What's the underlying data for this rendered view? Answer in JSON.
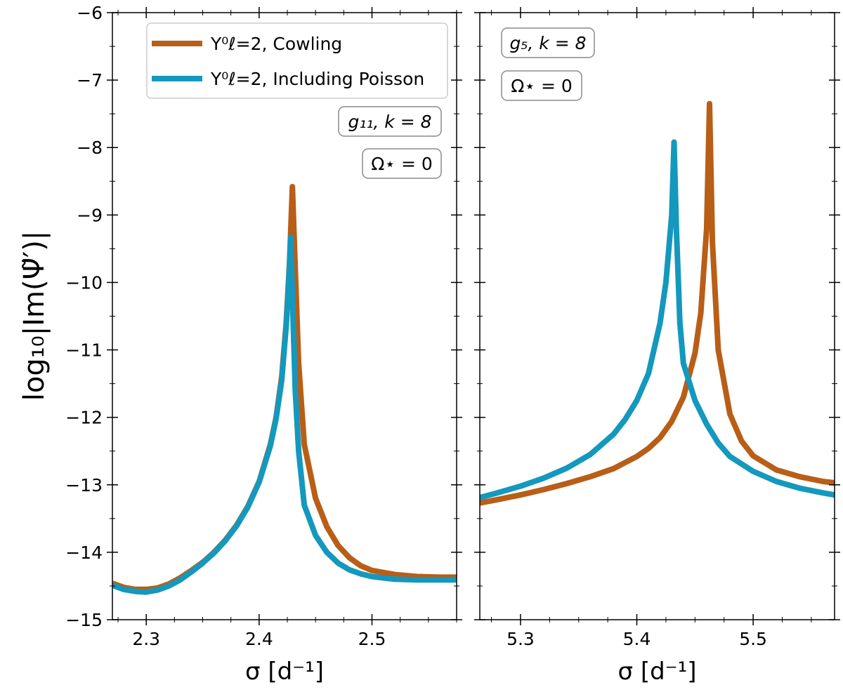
{
  "chart_data": [
    {
      "type": "line",
      "panel": "left",
      "xlabel": "σ [d⁻¹]",
      "ylabel": "log₁₀|Im(Ψ̃′)|",
      "xlim": [
        2.27,
        2.575
      ],
      "ylim": [
        -15,
        -6
      ],
      "xticks": [
        2.3,
        2.4,
        2.5
      ],
      "xtick_labels": [
        "2.3",
        "2.4",
        "2.5"
      ],
      "yticks": [
        -15,
        -14,
        -13,
        -12,
        -11,
        -10,
        -9,
        -8,
        -7,
        -6
      ],
      "ytick_labels": [
        "−15",
        "−14",
        "−13",
        "−12",
        "−11",
        "−10",
        "−9",
        "−8",
        "−7",
        "−6"
      ],
      "annotations": [
        "g₁₁, k = 8",
        "Ω⋆ = 0"
      ],
      "legend": {
        "placement": "top-center",
        "entries": [
          "Y⁰ℓ=2, Cowling",
          "Y⁰ℓ=2, Including Poisson"
        ]
      },
      "series": [
        {
          "name": "Y⁰ℓ=2, Cowling",
          "color": "#b95e17",
          "x": [
            2.27,
            2.28,
            2.29,
            2.3,
            2.31,
            2.32,
            2.33,
            2.34,
            2.35,
            2.36,
            2.37,
            2.38,
            2.39,
            2.4,
            2.41,
            2.415,
            2.42,
            2.424,
            2.427,
            2.4295,
            2.432,
            2.435,
            2.44,
            2.45,
            2.46,
            2.47,
            2.48,
            2.49,
            2.5,
            2.52,
            2.54,
            2.56,
            2.575
          ],
          "y": [
            -14.46,
            -14.52,
            -14.55,
            -14.55,
            -14.53,
            -14.47,
            -14.38,
            -14.27,
            -14.15,
            -14.0,
            -13.82,
            -13.6,
            -13.32,
            -12.95,
            -12.4,
            -12.0,
            -11.4,
            -10.6,
            -9.7,
            -8.58,
            -9.8,
            -11.2,
            -12.4,
            -13.2,
            -13.62,
            -13.9,
            -14.08,
            -14.2,
            -14.27,
            -14.33,
            -14.36,
            -14.37,
            -14.37
          ]
        },
        {
          "name": "Y⁰ℓ=2, Including Poisson",
          "color": "#1498bd",
          "x": [
            2.27,
            2.28,
            2.29,
            2.3,
            2.31,
            2.32,
            2.33,
            2.34,
            2.35,
            2.36,
            2.37,
            2.38,
            2.39,
            2.4,
            2.41,
            2.415,
            2.42,
            2.424,
            2.4265,
            2.428,
            2.4295,
            2.432,
            2.435,
            2.44,
            2.45,
            2.46,
            2.47,
            2.48,
            2.49,
            2.5,
            2.52,
            2.54,
            2.56,
            2.575
          ],
          "y": [
            -14.49,
            -14.55,
            -14.58,
            -14.59,
            -14.56,
            -14.5,
            -14.41,
            -14.29,
            -14.16,
            -14.01,
            -13.83,
            -13.61,
            -13.33,
            -12.96,
            -12.42,
            -12.02,
            -11.45,
            -10.65,
            -9.9,
            -9.33,
            -10.2,
            -11.6,
            -12.5,
            -13.3,
            -13.75,
            -14.0,
            -14.16,
            -14.26,
            -14.32,
            -14.36,
            -14.4,
            -14.41,
            -14.41,
            -14.41
          ]
        }
      ]
    },
    {
      "type": "line",
      "panel": "right",
      "xlabel": "σ [d⁻¹]",
      "ylabel": "",
      "xlim": [
        5.265,
        5.57
      ],
      "ylim": [
        -15,
        -6
      ],
      "xticks": [
        5.3,
        5.4,
        5.5
      ],
      "xtick_labels": [
        "5.3",
        "5.4",
        "5.5"
      ],
      "yticks": [
        -15,
        -14,
        -13,
        -12,
        -11,
        -10,
        -9,
        -8,
        -7,
        -6
      ],
      "annotations": [
        "g₅, k = 8",
        "Ω⋆ = 0"
      ],
      "series": [
        {
          "name": "Y⁰ℓ=2, Cowling",
          "color": "#b95e17",
          "x": [
            5.265,
            5.28,
            5.3,
            5.32,
            5.34,
            5.36,
            5.38,
            5.4,
            5.41,
            5.42,
            5.43,
            5.44,
            5.45,
            5.455,
            5.46,
            5.4625,
            5.465,
            5.47,
            5.48,
            5.49,
            5.5,
            5.52,
            5.54,
            5.56,
            5.57
          ],
          "y": [
            -13.27,
            -13.22,
            -13.15,
            -13.07,
            -12.98,
            -12.88,
            -12.76,
            -12.58,
            -12.46,
            -12.3,
            -12.06,
            -11.7,
            -11.05,
            -10.45,
            -9.2,
            -7.35,
            -9.4,
            -11.0,
            -11.95,
            -12.35,
            -12.57,
            -12.78,
            -12.88,
            -12.95,
            -12.97
          ]
        },
        {
          "name": "Y⁰ℓ=2, Including Poisson",
          "color": "#1498bd",
          "x": [
            5.265,
            5.28,
            5.3,
            5.32,
            5.34,
            5.36,
            5.38,
            5.39,
            5.4,
            5.41,
            5.42,
            5.425,
            5.43,
            5.432,
            5.434,
            5.437,
            5.44,
            5.45,
            5.46,
            5.47,
            5.48,
            5.5,
            5.52,
            5.54,
            5.56,
            5.57
          ],
          "y": [
            -13.19,
            -13.12,
            -13.02,
            -12.9,
            -12.75,
            -12.55,
            -12.25,
            -12.03,
            -11.75,
            -11.35,
            -10.6,
            -10.0,
            -9.0,
            -7.92,
            -9.2,
            -10.6,
            -11.2,
            -11.75,
            -12.1,
            -12.38,
            -12.58,
            -12.8,
            -12.95,
            -13.05,
            -13.12,
            -13.15
          ]
        }
      ]
    }
  ]
}
